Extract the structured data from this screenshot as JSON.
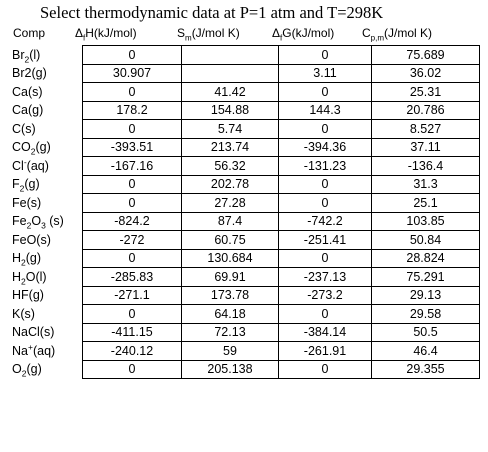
{
  "title": "Select thermodynamic data at P=1 atm and T=298K",
  "headers": {
    "comp": "Comp",
    "h": {
      "pre": "Δ",
      "sub": "f",
      "post": "H(kJ/mol)"
    },
    "s": {
      "pre": "S",
      "sub": "m",
      "post": "(J/mol K)"
    },
    "g": {
      "pre": "Δ",
      "sub": "f",
      "post": "G(kJ/mol)"
    },
    "c": {
      "pre": "C",
      "sub": "p,m",
      "post": "(J/mol K)"
    }
  },
  "rows": [
    {
      "comp": [
        {
          "t": "Br"
        },
        {
          "sub": "2"
        },
        {
          "t": "(l)"
        }
      ],
      "dH": "0",
      "S": "",
      "dG": "0",
      "Cp": "75.689"
    },
    {
      "comp": [
        {
          "t": "Br2(g)"
        }
      ],
      "dH": "30.907",
      "S": "",
      "dG": "3.11",
      "Cp": "36.02"
    },
    {
      "comp": [
        {
          "t": "Ca(s)"
        }
      ],
      "dH": "0",
      "S": "41.42",
      "dG": "0",
      "Cp": "25.31"
    },
    {
      "comp": [
        {
          "t": "Ca(g)"
        }
      ],
      "dH": "178.2",
      "S": "154.88",
      "dG": "144.3",
      "Cp": "20.786"
    },
    {
      "comp": [
        {
          "t": "C(s)"
        }
      ],
      "dH": "0",
      "S": "5.74",
      "dG": "0",
      "Cp": "8.527"
    },
    {
      "comp": [
        {
          "t": "CO"
        },
        {
          "sub": "2"
        },
        {
          "t": "(g)"
        }
      ],
      "dH": "-393.51",
      "S": "213.74",
      "dG": "-394.36",
      "Cp": "37.11"
    },
    {
      "comp": [
        {
          "t": "Cl"
        },
        {
          "sup": "-"
        },
        {
          "t": "(aq)"
        }
      ],
      "dH": "-167.16",
      "S": "56.32",
      "dG": "-131.23",
      "Cp": "-136.4"
    },
    {
      "comp": [
        {
          "t": "F"
        },
        {
          "sub": "2"
        },
        {
          "t": "(g)"
        }
      ],
      "dH": "0",
      "S": "202.78",
      "dG": "0",
      "Cp": "31.3"
    },
    {
      "comp": [
        {
          "t": "Fe(s)"
        }
      ],
      "dH": "0",
      "S": "27.28",
      "dG": "0",
      "Cp": "25.1"
    },
    {
      "comp": [
        {
          "t": "Fe"
        },
        {
          "sub": "2"
        },
        {
          "t": "O"
        },
        {
          "sub": "3"
        },
        {
          "t": " (s)"
        }
      ],
      "dH": "-824.2",
      "S": "87.4",
      "dG": "-742.2",
      "Cp": "103.85"
    },
    {
      "comp": [
        {
          "t": "FeO(s)"
        }
      ],
      "dH": "-272",
      "S": "60.75",
      "dG": "-251.41",
      "Cp": "50.84"
    },
    {
      "comp": [
        {
          "t": "H"
        },
        {
          "sub": "2"
        },
        {
          "t": "(g)"
        }
      ],
      "dH": "0",
      "S": "130.684",
      "dG": "0",
      "Cp": "28.824"
    },
    {
      "comp": [
        {
          "t": "H"
        },
        {
          "sub": "2"
        },
        {
          "t": "O(l)"
        }
      ],
      "dH": "-285.83",
      "S": "69.91",
      "dG": "-237.13",
      "Cp": "75.291"
    },
    {
      "comp": [
        {
          "t": "HF(g)"
        }
      ],
      "dH": "-271.1",
      "S": "173.78",
      "dG": "-273.2",
      "Cp": "29.13"
    },
    {
      "comp": [
        {
          "t": "K(s)"
        }
      ],
      "dH": "0",
      "S": "64.18",
      "dG": "0",
      "Cp": "29.58"
    },
    {
      "comp": [
        {
          "t": "NaCl(s)"
        }
      ],
      "dH": "-411.15",
      "S": "72.13",
      "dG": "-384.14",
      "Cp": "50.5"
    },
    {
      "comp": [
        {
          "t": "Na"
        },
        {
          "sup": "+"
        },
        {
          "t": "(aq)"
        }
      ],
      "dH": "-240.12",
      "S": "59",
      "dG": "-261.91",
      "Cp": "46.4"
    },
    {
      "comp": [
        {
          "t": "O"
        },
        {
          "sub": "2"
        },
        {
          "t": "(g)"
        }
      ],
      "dH": "0",
      "S": "205.138",
      "dG": "0",
      "Cp": "29.355"
    }
  ]
}
